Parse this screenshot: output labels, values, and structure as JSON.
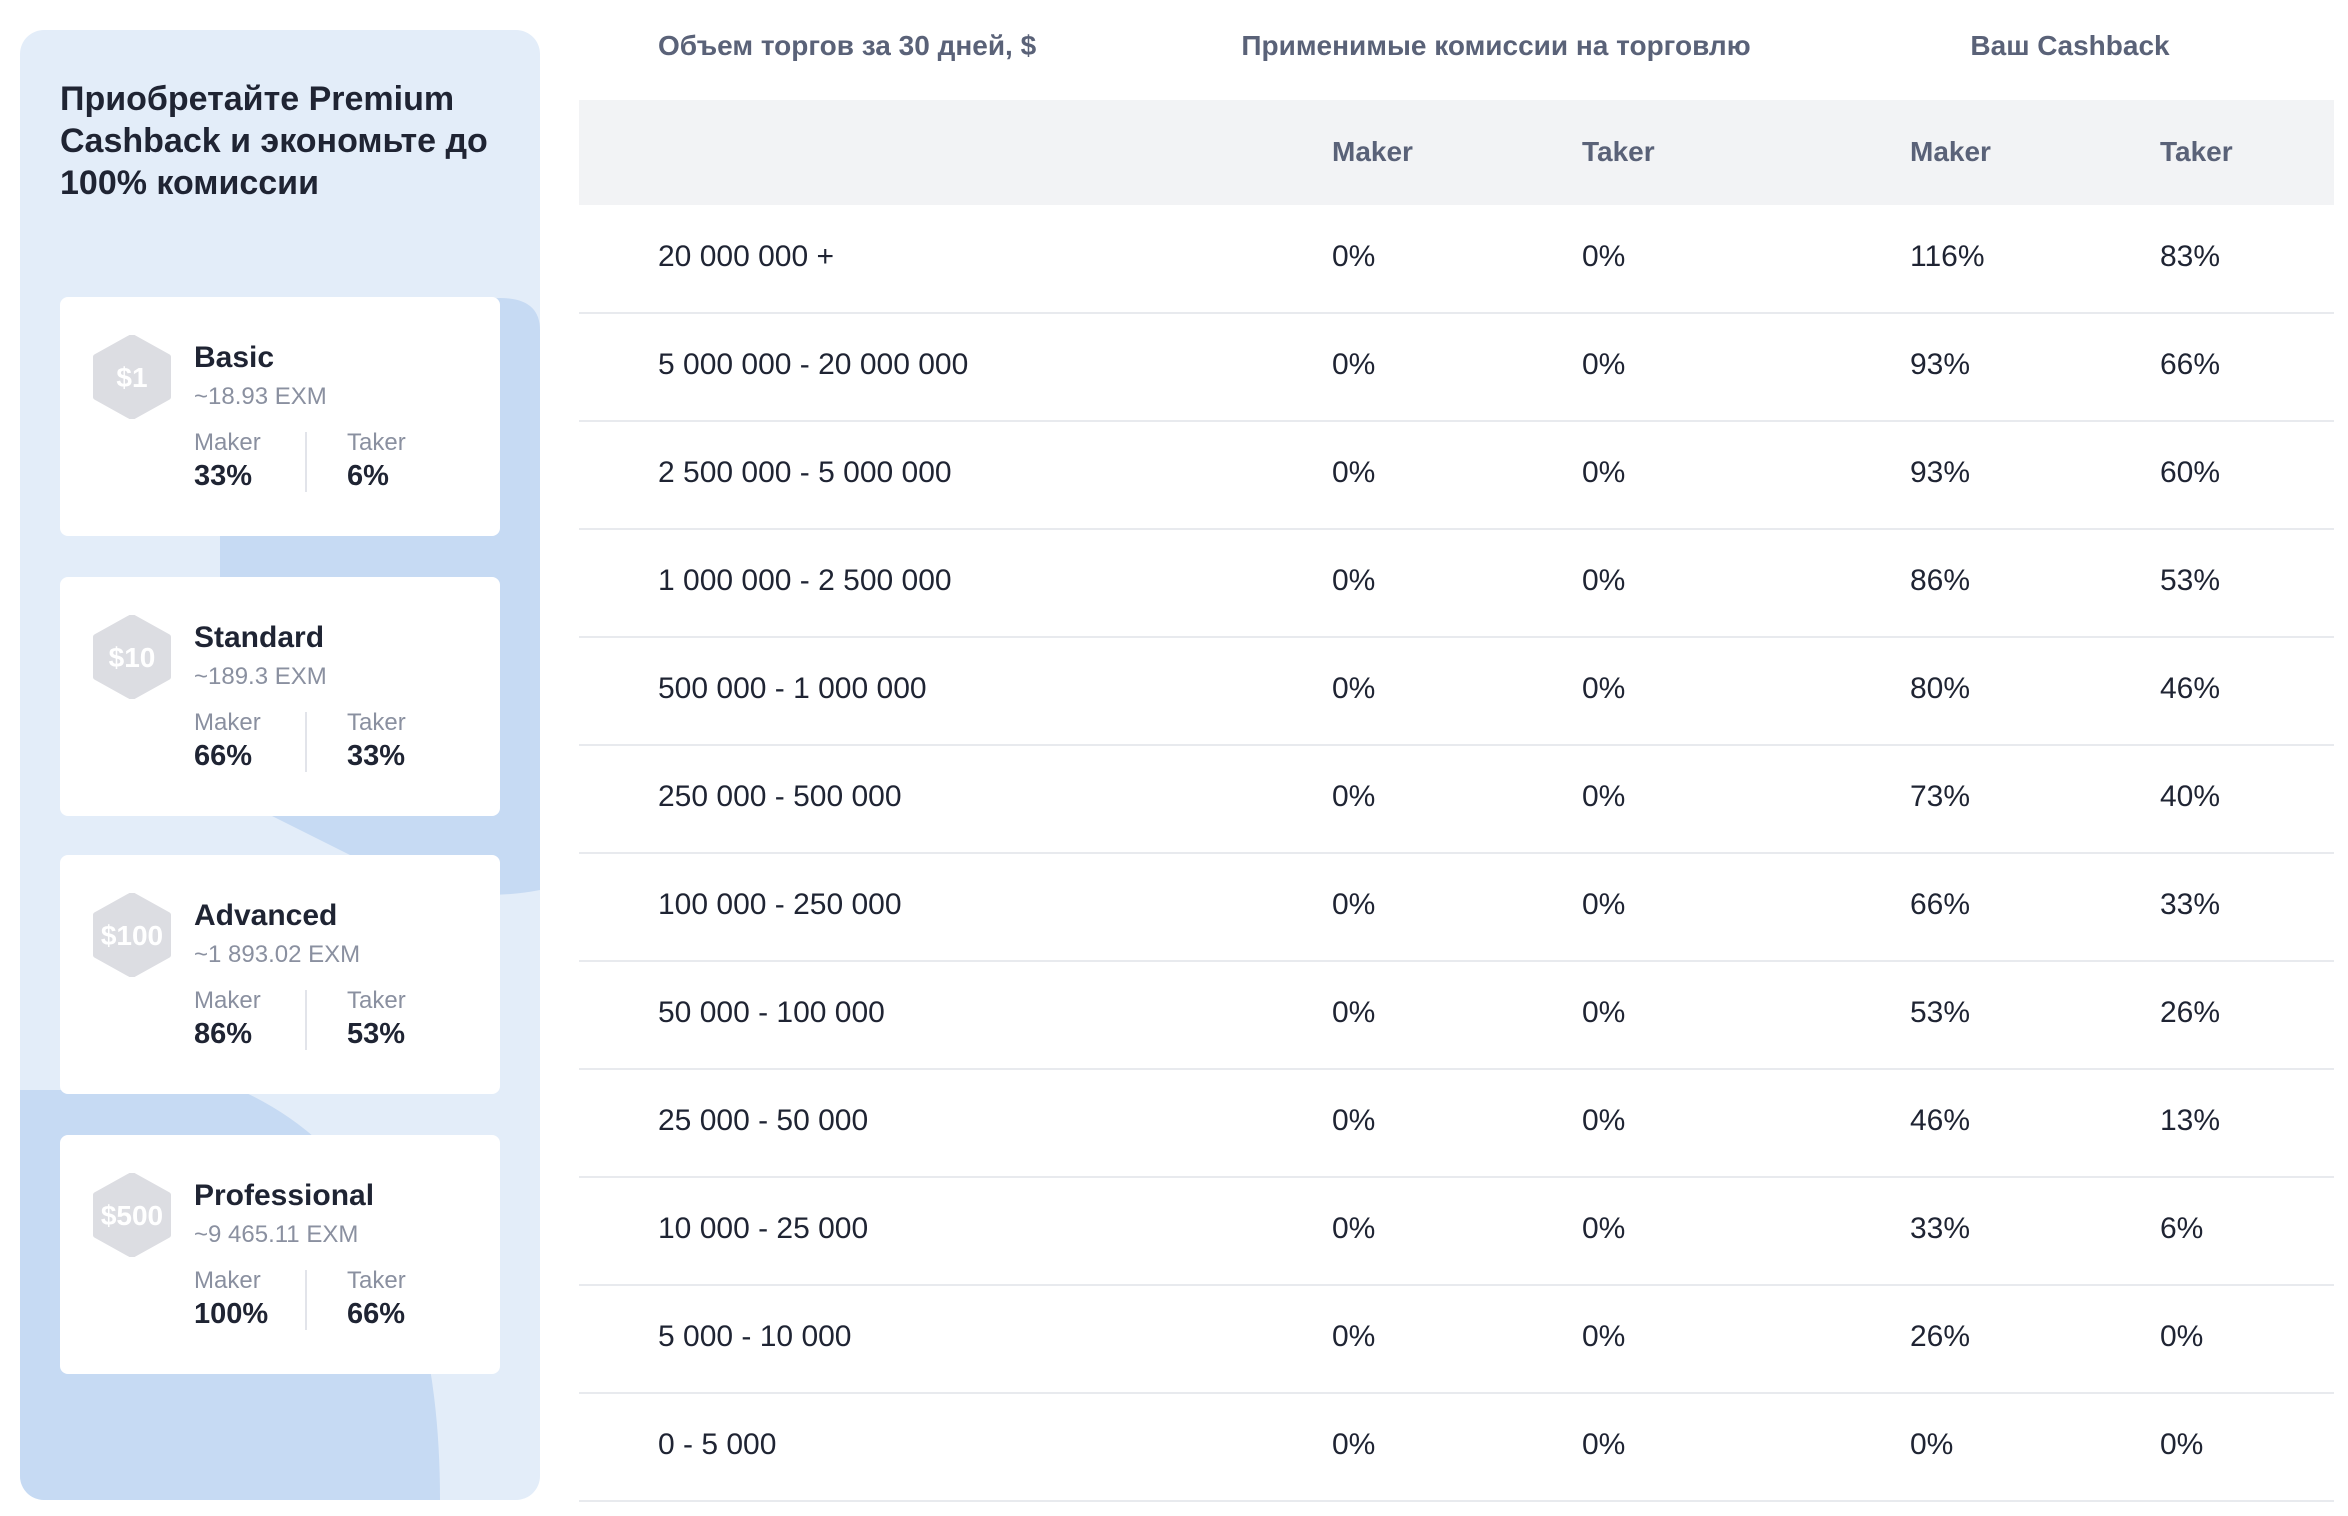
{
  "sidebar": {
    "title": "Приобретайте Premium Cashback и экономьте до 100% комиссии",
    "plans": [
      {
        "badge": "$1",
        "name": "Basic",
        "price": "~18.93 EXM",
        "maker_label": "Maker",
        "maker": "33%",
        "taker_label": "Taker",
        "taker": "6%"
      },
      {
        "badge": "$10",
        "name": "Standard",
        "price": "~189.3 EXM",
        "maker_label": "Maker",
        "maker": "66%",
        "taker_label": "Taker",
        "taker": "33%"
      },
      {
        "badge": "$100",
        "name": "Advanced",
        "price": "~1 893.02 EXM",
        "maker_label": "Maker",
        "maker": "86%",
        "taker_label": "Taker",
        "taker": "53%"
      },
      {
        "badge": "$500",
        "name": "Professional",
        "price": "~9 465.11 EXM",
        "maker_label": "Maker",
        "maker": "100%",
        "taker_label": "Taker",
        "taker": "66%"
      }
    ]
  },
  "table": {
    "group_headers": [
      "Объем торгов за 30 дней, $",
      "Применимые комиссии на торговлю",
      "Ваш Cashback"
    ],
    "sub_headers": [
      "Maker",
      "Taker",
      "Maker",
      "Taker"
    ],
    "rows": [
      [
        "20 000 000 +",
        "0%",
        "0%",
        "116%",
        "83%"
      ],
      [
        "5 000 000 - 20 000 000",
        "0%",
        "0%",
        "93%",
        "66%"
      ],
      [
        "2 500 000 - 5 000 000",
        "0%",
        "0%",
        "93%",
        "60%"
      ],
      [
        "1 000 000 - 2 500 000",
        "0%",
        "0%",
        "86%",
        "53%"
      ],
      [
        "500 000 - 1 000 000",
        "0%",
        "0%",
        "80%",
        "46%"
      ],
      [
        "250 000 - 500 000",
        "0%",
        "0%",
        "73%",
        "40%"
      ],
      [
        "100 000 - 250 000",
        "0%",
        "0%",
        "66%",
        "33%"
      ],
      [
        "50 000 - 100 000",
        "0%",
        "0%",
        "53%",
        "26%"
      ],
      [
        "25 000 - 50 000",
        "0%",
        "0%",
        "46%",
        "13%"
      ],
      [
        "10 000 - 25 000",
        "0%",
        "0%",
        "33%",
        "6%"
      ],
      [
        "5 000 - 10 000",
        "0%",
        "0%",
        "26%",
        "0%"
      ],
      [
        "0 - 5 000",
        "0%",
        "0%",
        "0%",
        "0%"
      ]
    ]
  }
}
